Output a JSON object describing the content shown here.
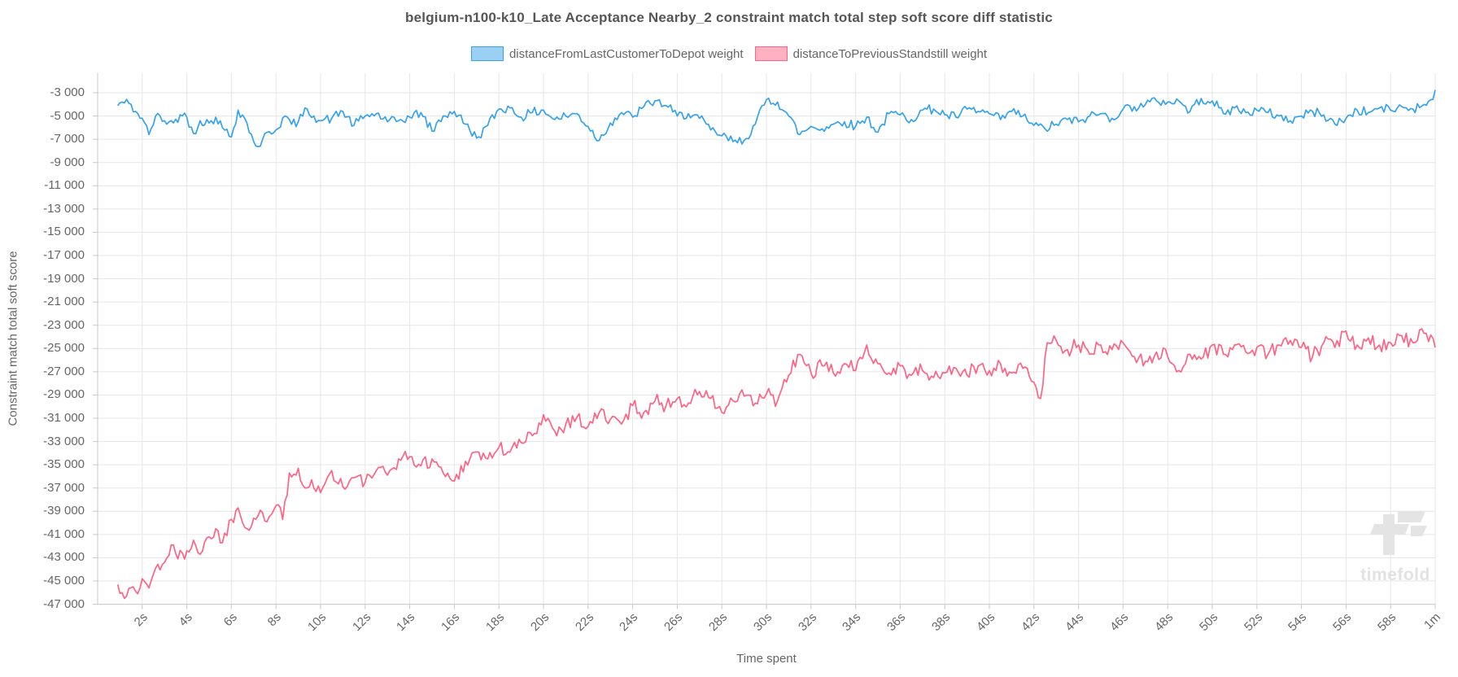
{
  "watermark": {
    "text": "timefold",
    "logo_color": "#e4e4e4"
  },
  "chart_data": {
    "type": "line",
    "title": "belgium-n100-k10_Late Acceptance Nearby_2 constraint match total step soft score diff statistic",
    "xlabel": "Time spent",
    "ylabel": "Constraint match total soft score",
    "xlim": [
      0,
      60
    ],
    "ylim": [
      -47000,
      -1320
    ],
    "grid": true,
    "legend_position": "top",
    "x_tick_seconds": [
      2,
      4,
      6,
      8,
      10,
      12,
      14,
      16,
      18,
      20,
      22,
      24,
      26,
      28,
      30,
      32,
      34,
      36,
      38,
      40,
      42,
      44,
      46,
      48,
      50,
      52,
      54,
      56,
      58,
      60
    ],
    "x_tick_labels": [
      "2s",
      "4s",
      "6s",
      "8s",
      "10s",
      "12s",
      "14s",
      "16s",
      "18s",
      "20s",
      "22s",
      "24s",
      "26s",
      "28s",
      "30s",
      "32s",
      "34s",
      "36s",
      "38s",
      "40s",
      "42s",
      "44s",
      "46s",
      "48s",
      "50s",
      "52s",
      "54s",
      "56s",
      "58s",
      "1m"
    ],
    "y_ticks": [
      -3000,
      -5000,
      -7000,
      -9000,
      -11000,
      -13000,
      -15000,
      -17000,
      -19000,
      -21000,
      -23000,
      -25000,
      -27000,
      -29000,
      -31000,
      -33000,
      -35000,
      -37000,
      -39000,
      -41000,
      -43000,
      -45000,
      -47000
    ],
    "grid_color": "#e6e6e6",
    "axis_color": "#c9c9c9",
    "tick_text_color": "#666666",
    "series": [
      {
        "name": "distanceFromLastCustomerToDepot weight",
        "color": "#36A2EB",
        "legend_fill": "#9BD0F5",
        "noise_amplitude": 420,
        "noise_step_s": 0.1,
        "seed": 42,
        "clamp": [
          -7850,
          -2720
        ],
        "anchors": [
          [
            0.9,
            -4100
          ],
          [
            1.1,
            -3800
          ],
          [
            1.4,
            -3900
          ],
          [
            1.7,
            -4600
          ],
          [
            2,
            -5200
          ],
          [
            2.3,
            -6600
          ],
          [
            2.6,
            -5000
          ],
          [
            3,
            -5400
          ],
          [
            3.4,
            -5600
          ],
          [
            3.7,
            -4900
          ],
          [
            4,
            -5100
          ],
          [
            4.3,
            -6500
          ],
          [
            4.6,
            -5400
          ],
          [
            5,
            -5600
          ],
          [
            5.3,
            -5100
          ],
          [
            5.6,
            -6000
          ],
          [
            6,
            -6800
          ],
          [
            6.3,
            -4500
          ],
          [
            6.6,
            -5200
          ],
          [
            7,
            -7200
          ],
          [
            7.3,
            -7600
          ],
          [
            7.6,
            -6400
          ],
          [
            8,
            -6200
          ],
          [
            8.4,
            -5000
          ],
          [
            8.7,
            -5700
          ],
          [
            9,
            -5500
          ],
          [
            9.4,
            -4400
          ],
          [
            9.7,
            -5000
          ],
          [
            10,
            -5400
          ],
          [
            10.5,
            -5200
          ],
          [
            11,
            -4600
          ],
          [
            11.5,
            -5800
          ],
          [
            12,
            -5000
          ],
          [
            12.5,
            -4800
          ],
          [
            13,
            -5500
          ],
          [
            13.5,
            -5400
          ],
          [
            14,
            -5100
          ],
          [
            14.5,
            -4700
          ],
          [
            15,
            -6300
          ],
          [
            15.5,
            -5000
          ],
          [
            16,
            -4600
          ],
          [
            16.5,
            -5700
          ],
          [
            17,
            -6900
          ],
          [
            17.5,
            -5800
          ],
          [
            18,
            -4400
          ],
          [
            18.5,
            -4300
          ],
          [
            19,
            -5100
          ],
          [
            19.5,
            -4700
          ],
          [
            20,
            -4500
          ],
          [
            20.5,
            -5300
          ],
          [
            21,
            -5000
          ],
          [
            21.5,
            -4800
          ],
          [
            22,
            -5900
          ],
          [
            22.5,
            -7100
          ],
          [
            23,
            -5600
          ],
          [
            23.5,
            -4700
          ],
          [
            24,
            -5100
          ],
          [
            24.5,
            -4200
          ],
          [
            25,
            -3700
          ],
          [
            25.5,
            -4100
          ],
          [
            26,
            -5000
          ],
          [
            26.5,
            -4800
          ],
          [
            27,
            -5200
          ],
          [
            27.5,
            -6200
          ],
          [
            28,
            -6700
          ],
          [
            28.5,
            -7200
          ],
          [
            29,
            -7100
          ],
          [
            29.5,
            -5700
          ],
          [
            30,
            -3600
          ],
          [
            30.5,
            -3800
          ],
          [
            31,
            -5000
          ],
          [
            31.5,
            -6600
          ],
          [
            32,
            -5900
          ],
          [
            32.5,
            -6100
          ],
          [
            33,
            -5700
          ],
          [
            33.5,
            -5500
          ],
          [
            34,
            -5900
          ],
          [
            34.5,
            -5100
          ],
          [
            35,
            -6400
          ],
          [
            35.5,
            -4800
          ],
          [
            36,
            -4900
          ],
          [
            36.5,
            -5300
          ],
          [
            37,
            -4500
          ],
          [
            37.5,
            -4400
          ],
          [
            38,
            -4900
          ],
          [
            38.5,
            -5100
          ],
          [
            39,
            -4400
          ],
          [
            39.5,
            -4600
          ],
          [
            40,
            -4800
          ],
          [
            40.5,
            -5300
          ],
          [
            41,
            -4600
          ],
          [
            41.5,
            -5000
          ],
          [
            42,
            -5800
          ],
          [
            42.5,
            -6100
          ],
          [
            43,
            -5700
          ],
          [
            43.5,
            -5300
          ],
          [
            44,
            -5500
          ],
          [
            44.5,
            -5000
          ],
          [
            45,
            -4800
          ],
          [
            45.5,
            -5200
          ],
          [
            46,
            -4400
          ],
          [
            46.5,
            -4200
          ],
          [
            47,
            -4000
          ],
          [
            47.5,
            -3700
          ],
          [
            48,
            -3800
          ],
          [
            48.5,
            -3700
          ],
          [
            49,
            -4600
          ],
          [
            49.5,
            -3500
          ],
          [
            50,
            -3700
          ],
          [
            50.5,
            -4800
          ],
          [
            51,
            -4300
          ],
          [
            51.5,
            -4700
          ],
          [
            52,
            -4500
          ],
          [
            52.5,
            -4700
          ],
          [
            53,
            -5000
          ],
          [
            53.5,
            -5400
          ],
          [
            54,
            -5000
          ],
          [
            54.5,
            -4600
          ],
          [
            55,
            -4900
          ],
          [
            55.5,
            -5700
          ],
          [
            56,
            -5200
          ],
          [
            56.5,
            -4500
          ],
          [
            57,
            -4700
          ],
          [
            57.5,
            -4300
          ],
          [
            58,
            -4500
          ],
          [
            58.5,
            -4200
          ],
          [
            59,
            -4400
          ],
          [
            59.5,
            -4000
          ],
          [
            59.8,
            -3600
          ],
          [
            60,
            -2750
          ]
        ]
      },
      {
        "name": "distanceToPreviousStandstill weight",
        "color": "#FF6384",
        "legend_fill": "#FFB1C1",
        "noise_amplitude": 650,
        "noise_step_s": 0.1,
        "seed": 1337,
        "clamp": [
          -46500,
          -23200
        ],
        "anchors": [
          [
            0.9,
            -45300
          ],
          [
            1.1,
            -46000
          ],
          [
            1.3,
            -46300
          ],
          [
            1.6,
            -45500
          ],
          [
            1.8,
            -46100
          ],
          [
            2,
            -44800
          ],
          [
            2.3,
            -45600
          ],
          [
            2.6,
            -43900
          ],
          [
            3,
            -43400
          ],
          [
            3.3,
            -41900
          ],
          [
            3.6,
            -43100
          ],
          [
            4,
            -42400
          ],
          [
            4.3,
            -41500
          ],
          [
            4.6,
            -42700
          ],
          [
            5,
            -41200
          ],
          [
            5.3,
            -40500
          ],
          [
            5.6,
            -41700
          ],
          [
            6,
            -39700
          ],
          [
            6.3,
            -38700
          ],
          [
            6.6,
            -40400
          ],
          [
            7,
            -39600
          ],
          [
            7.3,
            -38900
          ],
          [
            7.6,
            -39900
          ],
          [
            8,
            -38500
          ],
          [
            8.3,
            -39700
          ],
          [
            8.6,
            -35700
          ],
          [
            9,
            -35300
          ],
          [
            9.3,
            -37000
          ],
          [
            9.6,
            -36300
          ],
          [
            10,
            -37400
          ],
          [
            10.5,
            -35500
          ],
          [
            11,
            -36900
          ],
          [
            11.5,
            -36100
          ],
          [
            12,
            -36500
          ],
          [
            12.5,
            -35500
          ],
          [
            13,
            -35900
          ],
          [
            13.5,
            -34500
          ],
          [
            14,
            -34300
          ],
          [
            14.5,
            -35100
          ],
          [
            15,
            -34500
          ],
          [
            15.5,
            -35700
          ],
          [
            16,
            -36400
          ],
          [
            16.5,
            -34700
          ],
          [
            17,
            -33900
          ],
          [
            17.5,
            -34500
          ],
          [
            18,
            -33500
          ],
          [
            18.5,
            -33900
          ],
          [
            19,
            -33100
          ],
          [
            19.5,
            -32500
          ],
          [
            20,
            -30700
          ],
          [
            20.5,
            -32100
          ],
          [
            21,
            -31500
          ],
          [
            21.5,
            -30900
          ],
          [
            22,
            -31700
          ],
          [
            22.5,
            -30500
          ],
          [
            23,
            -31100
          ],
          [
            23.5,
            -31500
          ],
          [
            24,
            -29900
          ],
          [
            24.5,
            -30500
          ],
          [
            25,
            -29500
          ],
          [
            25.5,
            -29900
          ],
          [
            26,
            -29300
          ],
          [
            26.5,
            -29700
          ],
          [
            27,
            -28700
          ],
          [
            27.5,
            -29300
          ],
          [
            28,
            -30500
          ],
          [
            28.5,
            -29500
          ],
          [
            29,
            -29100
          ],
          [
            29.5,
            -29700
          ],
          [
            30,
            -28900
          ],
          [
            30.5,
            -29500
          ],
          [
            31,
            -27300
          ],
          [
            31.5,
            -25500
          ],
          [
            32,
            -27100
          ],
          [
            32.5,
            -26500
          ],
          [
            33,
            -27100
          ],
          [
            33.5,
            -26300
          ],
          [
            34,
            -26900
          ],
          [
            34.5,
            -24700
          ],
          [
            35,
            -26300
          ],
          [
            35.5,
            -27100
          ],
          [
            36,
            -26500
          ],
          [
            36.5,
            -27300
          ],
          [
            37,
            -26900
          ],
          [
            37.5,
            -27500
          ],
          [
            38,
            -27100
          ],
          [
            38.5,
            -26700
          ],
          [
            39,
            -27300
          ],
          [
            39.5,
            -26500
          ],
          [
            40,
            -26900
          ],
          [
            40.5,
            -26300
          ],
          [
            41,
            -27100
          ],
          [
            41.5,
            -26700
          ],
          [
            42,
            -27900
          ],
          [
            42.3,
            -29300
          ],
          [
            42.6,
            -24500
          ],
          [
            43,
            -24300
          ],
          [
            43.5,
            -25100
          ],
          [
            44,
            -24700
          ],
          [
            44.5,
            -25500
          ],
          [
            45,
            -24700
          ],
          [
            45.5,
            -25100
          ],
          [
            46,
            -24500
          ],
          [
            46.5,
            -25700
          ],
          [
            47,
            -26100
          ],
          [
            47.5,
            -25300
          ],
          [
            48,
            -25700
          ],
          [
            48.5,
            -26900
          ],
          [
            49,
            -25500
          ],
          [
            49.5,
            -25900
          ],
          [
            50,
            -24700
          ],
          [
            50.5,
            -25500
          ],
          [
            51,
            -24700
          ],
          [
            51.5,
            -25300
          ],
          [
            52,
            -24900
          ],
          [
            52.5,
            -25500
          ],
          [
            53,
            -24700
          ],
          [
            53.5,
            -24300
          ],
          [
            54,
            -24900
          ],
          [
            54.5,
            -25700
          ],
          [
            55,
            -24500
          ],
          [
            55.5,
            -24900
          ],
          [
            56,
            -23500
          ],
          [
            56.5,
            -24700
          ],
          [
            57,
            -24100
          ],
          [
            57.5,
            -24700
          ],
          [
            58,
            -24500
          ],
          [
            58.5,
            -23900
          ],
          [
            59,
            -24500
          ],
          [
            59.5,
            -23700
          ],
          [
            60,
            -24900
          ]
        ]
      }
    ]
  }
}
